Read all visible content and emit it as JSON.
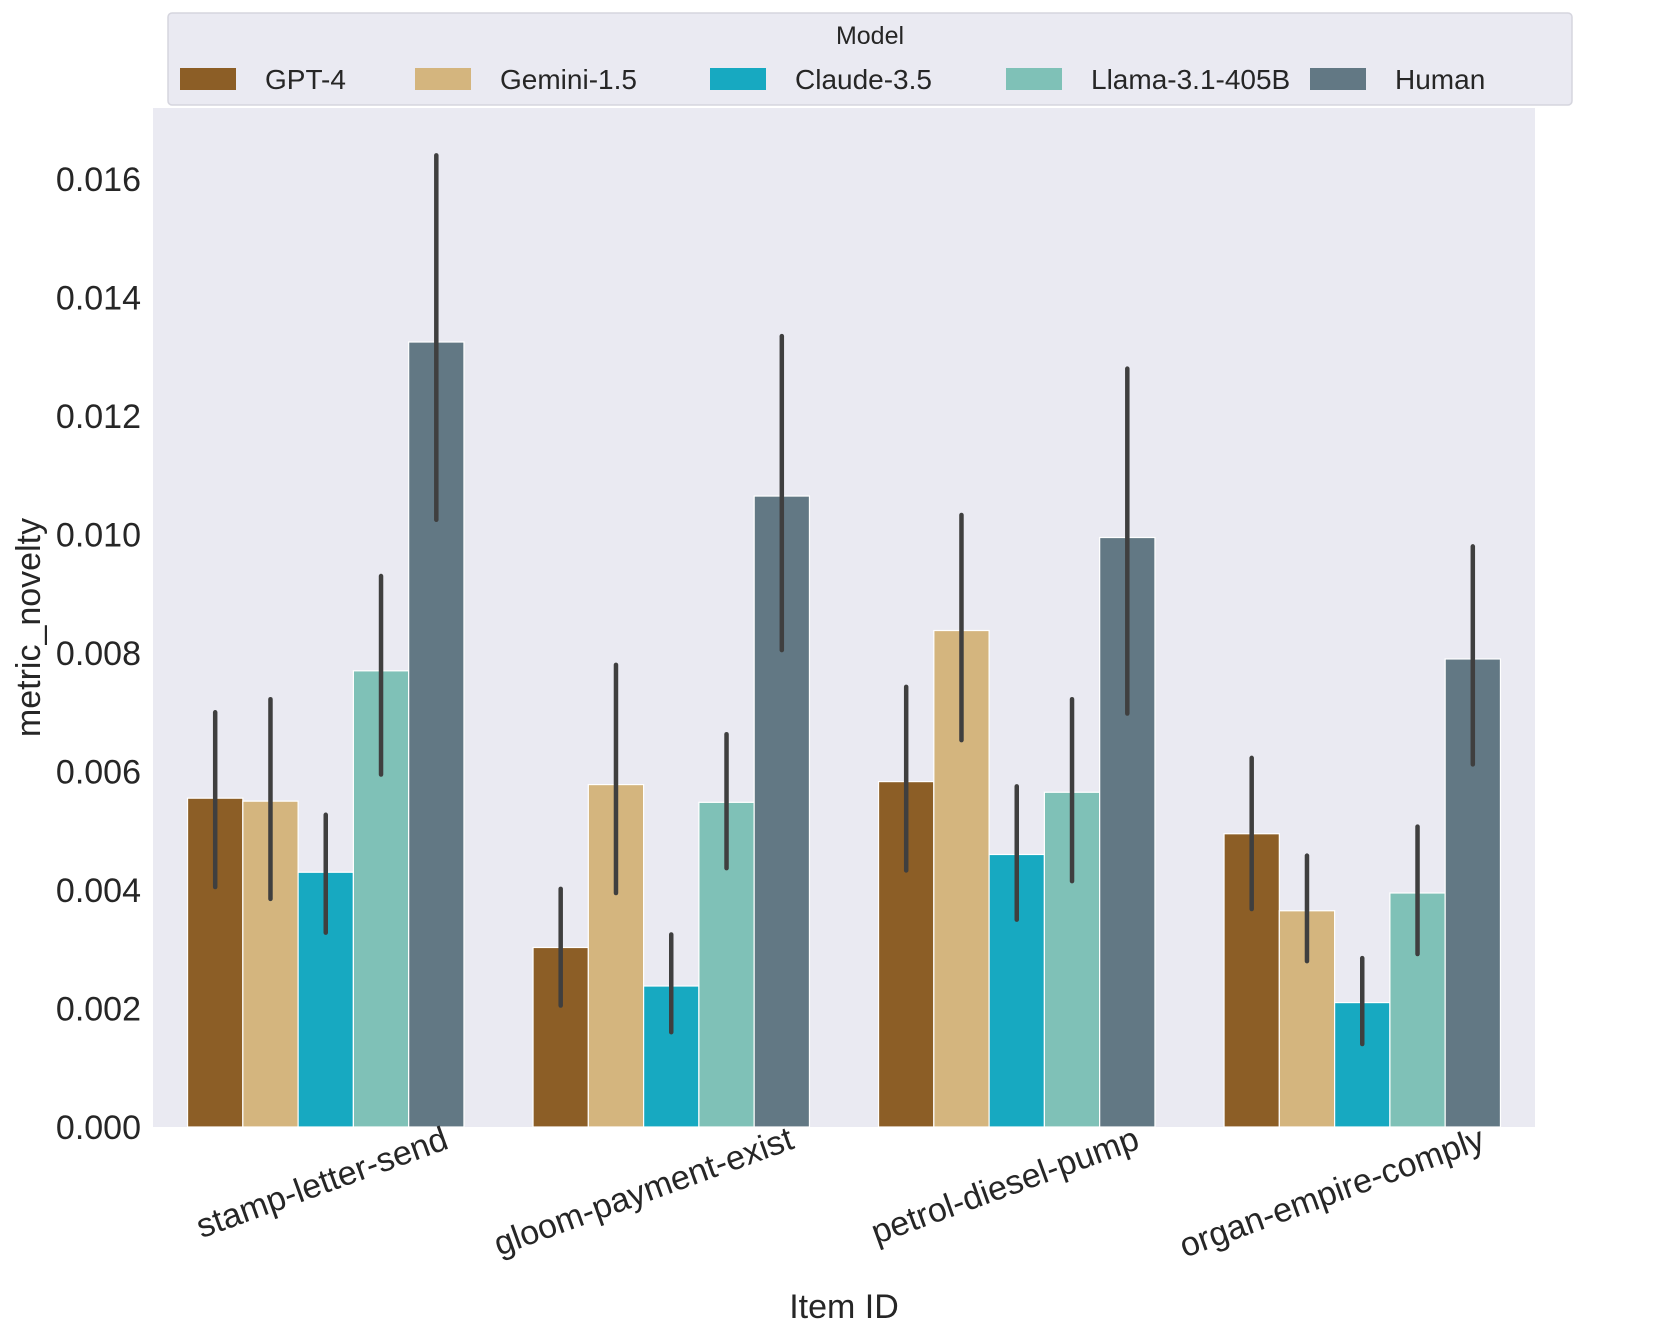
{
  "chart_data": {
    "type": "bar",
    "title": "",
    "xlabel": "Item ID",
    "ylabel": "metric_novelty",
    "ylim": [
      0,
      0.0172
    ],
    "yticks": [
      "0.000",
      "0.002",
      "0.004",
      "0.006",
      "0.008",
      "0.010",
      "0.012",
      "0.014",
      "0.016"
    ],
    "ytick_values": [
      0,
      0.002,
      0.004,
      0.006,
      0.008,
      0.01,
      0.012,
      0.014,
      0.016
    ],
    "grid": false,
    "legend": {
      "title": "Model",
      "position": "top"
    },
    "categories": [
      "stamp-letter-send",
      "gloom-payment-exist",
      "petrol-diesel-pump",
      "organ-empire-comply"
    ],
    "series": [
      {
        "name": "GPT-4",
        "color": "#8c5e26",
        "values": [
          0.00555,
          0.00303,
          0.00583,
          0.00495
        ],
        "err_low": [
          0.00405,
          0.00205,
          0.00433,
          0.00368
        ],
        "err_high": [
          0.007,
          0.00402,
          0.00743,
          0.00623
        ]
      },
      {
        "name": "Gemini-1.5",
        "color": "#d4b57e",
        "values": [
          0.0055,
          0.00578,
          0.00838,
          0.00365
        ],
        "err_low": [
          0.00385,
          0.00395,
          0.00653,
          0.0028
        ],
        "err_high": [
          0.00722,
          0.0078,
          0.01033,
          0.00458
        ]
      },
      {
        "name": "Claude-3.5",
        "color": "#17a9c1",
        "values": [
          0.0043,
          0.00238,
          0.0046,
          0.0021
        ],
        "err_low": [
          0.00328,
          0.0016,
          0.0035,
          0.0014
        ],
        "err_high": [
          0.00527,
          0.00325,
          0.00575,
          0.00285
        ]
      },
      {
        "name": "Llama-3.1-405B",
        "color": "#7fc1b7",
        "values": [
          0.0077,
          0.00548,
          0.00565,
          0.00395
        ],
        "err_low": [
          0.00595,
          0.00437,
          0.00415,
          0.00292
        ],
        "err_high": [
          0.0093,
          0.00663,
          0.00722,
          0.00507
        ]
      },
      {
        "name": "Human",
        "color": "#627884",
        "values": [
          0.01325,
          0.01065,
          0.00995,
          0.0079
        ],
        "err_low": [
          0.01025,
          0.00805,
          0.00698,
          0.00612
        ],
        "err_high": [
          0.0164,
          0.01335,
          0.0128,
          0.0098
        ]
      }
    ]
  },
  "colors": {
    "plot_background": "#eaeaf2",
    "error_bar": "#3f3f3f",
    "legend_background": "#eaeaf2"
  }
}
